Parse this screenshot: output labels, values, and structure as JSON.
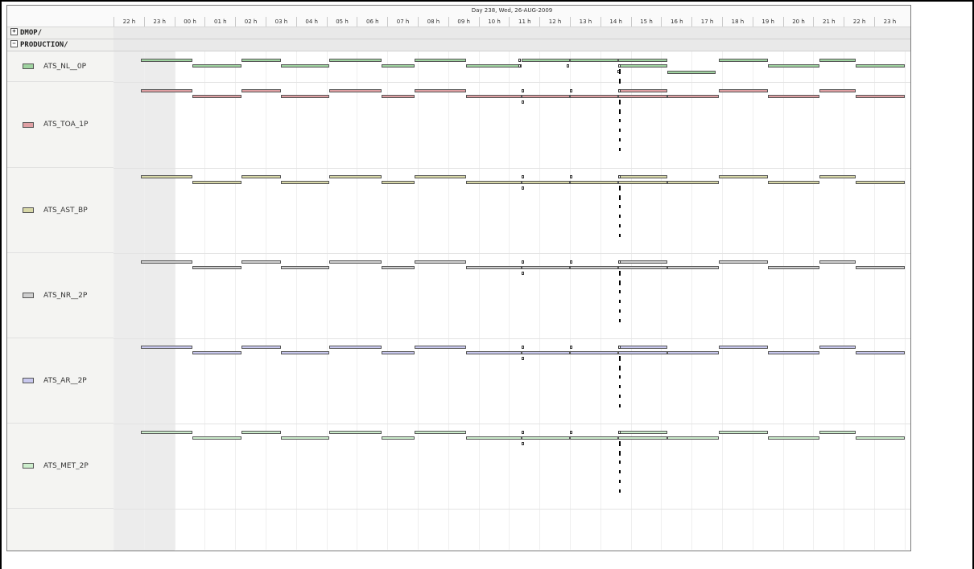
{
  "day_label": "Day 238, Wed, 26-AUG-2009",
  "hours": [
    "22 h",
    "23 h",
    "00 h",
    "01 h",
    "02 h",
    "03 h",
    "04 h",
    "05 h",
    "06 h",
    "07 h",
    "08 h",
    "09 h",
    "10 h",
    "11 h",
    "12 h",
    "13 h",
    "14 h",
    "15 h",
    "16 h",
    "17 h",
    "18 h",
    "19 h",
    "20 h",
    "21 h",
    "22 h",
    "23 h"
  ],
  "groups": [
    {
      "label": "DMOP/",
      "expanded": false,
      "toggle": "+"
    },
    {
      "label": "PRODUCTION/",
      "expanded": true,
      "toggle": "−"
    }
  ],
  "resources": [
    {
      "name": "ATS_NL__0P",
      "color": "#9fd3a0"
    },
    {
      "name": "ATS_TOA_1P",
      "color": "#e0a0a4"
    },
    {
      "name": "ATS_AST_BP",
      "color": "#d8d8a8"
    },
    {
      "name": "ATS_NR__2P",
      "color": "#cfcfcf"
    },
    {
      "name": "ATS_AR__2P",
      "color": "#c8c8ee"
    },
    {
      "name": "ATS_MET_2P",
      "color": "#cdeecd"
    }
  ],
  "icons": {
    "expand": "plus-box-icon",
    "collapse": "minus-box-icon"
  }
}
